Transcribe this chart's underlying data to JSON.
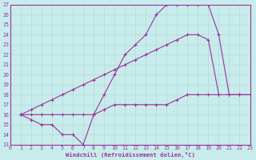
{
  "xlabel": "Windchill (Refroidissement éolien,°C)",
  "xlim": [
    0,
    23
  ],
  "ylim": [
    13,
    27
  ],
  "xticks": [
    0,
    1,
    2,
    3,
    4,
    5,
    6,
    7,
    8,
    9,
    10,
    11,
    12,
    13,
    14,
    15,
    16,
    17,
    18,
    19,
    20,
    21,
    22,
    23
  ],
  "yticks": [
    13,
    14,
    15,
    16,
    17,
    18,
    19,
    20,
    21,
    22,
    23,
    24,
    25,
    26,
    27
  ],
  "background_color": "#c8ecec",
  "grid_color": "#b0d8d8",
  "line_color": "#993399",
  "lines": [
    {
      "x": [
        1,
        2,
        3,
        4,
        5,
        6,
        7,
        8,
        9,
        10,
        11,
        12,
        13,
        14,
        15,
        16,
        17,
        18,
        19,
        20,
        21,
        22,
        23
      ],
      "y": [
        16,
        16,
        16,
        16,
        16,
        16,
        16,
        16,
        16.5,
        17,
        17,
        17,
        17,
        17,
        17,
        17.5,
        18,
        18,
        18,
        18,
        18,
        18,
        18
      ]
    },
    {
      "x": [
        1,
        2,
        3,
        4,
        5,
        6,
        7,
        8,
        9,
        10,
        11,
        12,
        13,
        14,
        15,
        16,
        17,
        18,
        19,
        20
      ],
      "y": [
        16,
        16.5,
        17,
        17.5,
        18,
        18.5,
        19,
        19.5,
        20,
        20.5,
        21,
        21.5,
        22,
        22.5,
        23,
        23.5,
        24,
        24,
        23.5,
        18
      ]
    },
    {
      "x": [
        1,
        2,
        3,
        4,
        5,
        6,
        7,
        8,
        9,
        10,
        11,
        12,
        13,
        14,
        15,
        16,
        17,
        18,
        19,
        20,
        21,
        22,
        23
      ],
      "y": [
        16,
        15.5,
        15,
        15,
        14,
        14,
        13,
        16,
        18,
        20,
        22,
        23,
        24,
        26,
        27,
        27,
        27,
        27,
        27,
        24,
        18,
        18,
        18
      ]
    }
  ]
}
